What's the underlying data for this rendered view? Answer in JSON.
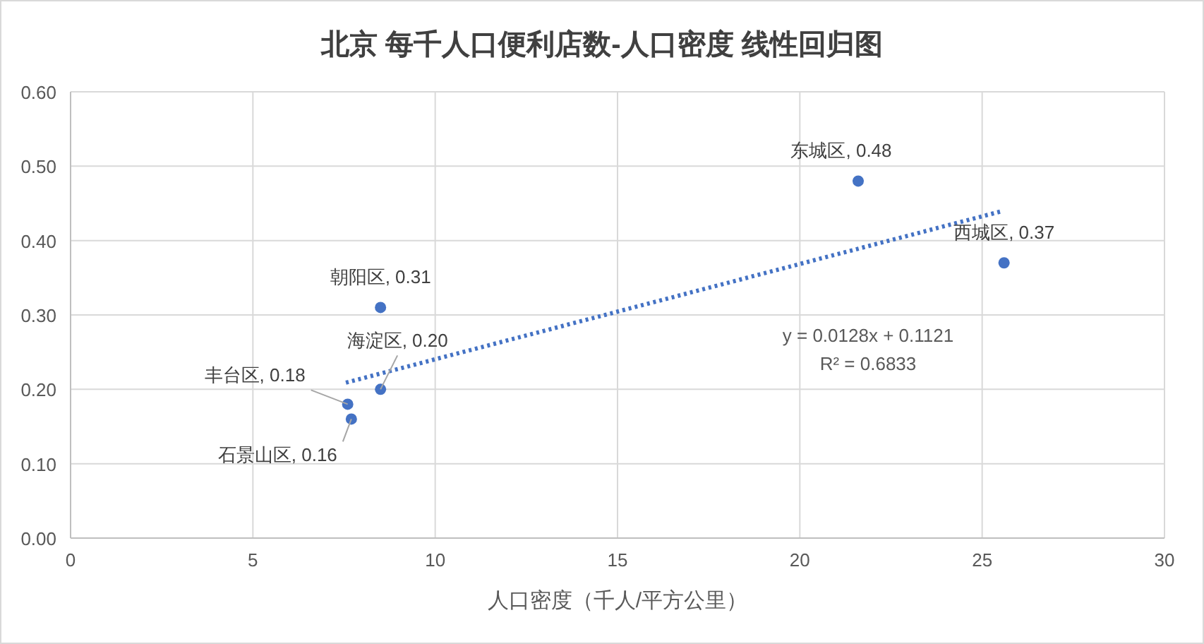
{
  "chart_data": {
    "type": "scatter",
    "title": "北京 每千人口便利店数-人口密度 线性回归图",
    "xlabel": "人口密度（千人/平方公里）",
    "xlim": [
      0,
      30
    ],
    "xticks": [
      0,
      5,
      10,
      15,
      20,
      25,
      30
    ],
    "ylim": [
      0,
      0.6
    ],
    "yticks": [
      {
        "value": 0,
        "label": "0.00"
      },
      {
        "value": 0.1,
        "label": "0.10"
      },
      {
        "value": 0.2,
        "label": "0.20"
      },
      {
        "value": 0.3,
        "label": "0.30"
      },
      {
        "value": 0.4,
        "label": "0.40"
      },
      {
        "value": 0.5,
        "label": "0.50"
      },
      {
        "value": 0.6,
        "label": "0.60"
      }
    ],
    "grid": true,
    "marker": "circle",
    "series": [
      {
        "type": "scatter",
        "color": "#4472c4",
        "x": [
          21.6,
          25.6,
          8.5,
          8.5,
          7.6,
          7.7
        ],
        "values": [
          0.48,
          0.37,
          0.31,
          0.2,
          0.18,
          0.16
        ]
      },
      {
        "type": "line",
        "color": "#4472c4",
        "line_style": "dotted",
        "marker": "none",
        "x": [
          7.55,
          25.5
        ],
        "values": [
          0.209,
          0.439
        ]
      }
    ],
    "annotations": [
      {
        "text": "东城区, 0.48",
        "x": 21.6,
        "y": 0.48
      },
      {
        "text": "西城区, 0.37",
        "x": 25.6,
        "y": 0.37
      },
      {
        "text": "朝阳区, 0.31",
        "x": 8.5,
        "y": 0.31
      },
      {
        "text": "海淀区, 0.20",
        "x": 8.5,
        "y": 0.2
      },
      {
        "text": "丰台区, 0.18",
        "x": 7.6,
        "y": 0.18
      },
      {
        "text": "石景山区, 0.16",
        "x": 7.7,
        "y": 0.16
      },
      "y = 0.0128x + 0.1121",
      "R² = 0.6833"
    ]
  }
}
